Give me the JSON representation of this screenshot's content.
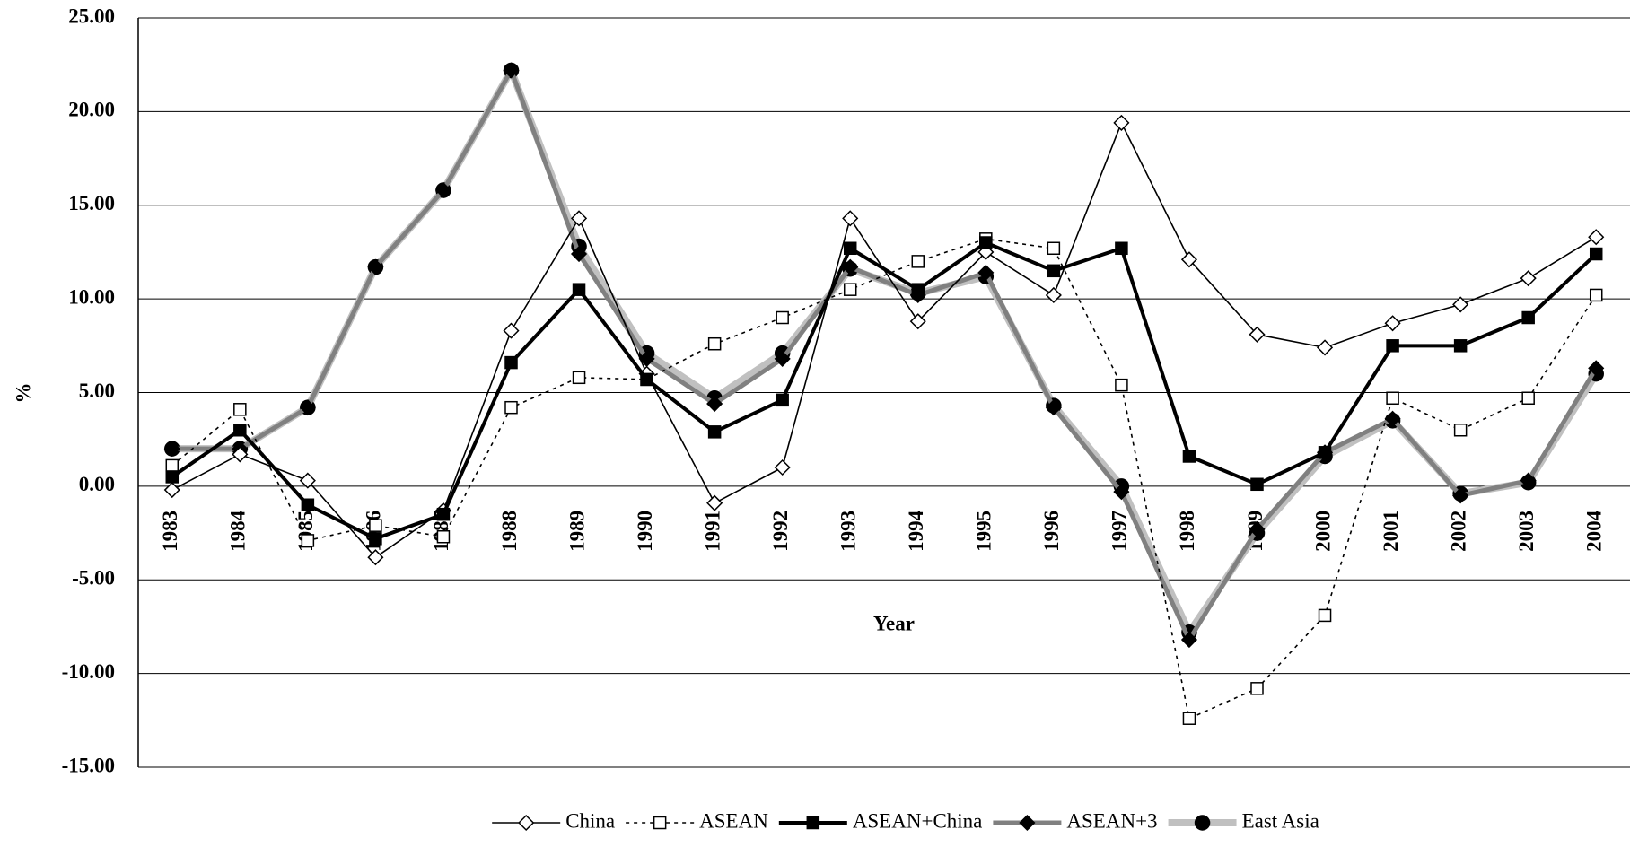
{
  "chart_data": {
    "type": "line",
    "x_label": "Year",
    "y_label": "%",
    "categories": [
      "1983",
      "1984",
      "1985",
      "1986",
      "1987",
      "1988",
      "1989",
      "1990",
      "1991",
      "1992",
      "1993",
      "1994",
      "1995",
      "1996",
      "1997",
      "1998",
      "1999",
      "2000",
      "2001",
      "2002",
      "2003",
      "2004"
    ],
    "series": [
      {
        "name": "China",
        "color": "#000000",
        "values": [
          -0.2,
          1.7,
          0.3,
          -3.8,
          -1.3,
          8.3,
          14.3,
          6.0,
          -0.9,
          1.0,
          14.3,
          8.8,
          12.5,
          10.2,
          19.4,
          12.1,
          8.1,
          7.4,
          8.7,
          9.7,
          11.1,
          13.3
        ]
      },
      {
        "name": "ASEAN",
        "color": "#000000",
        "values": [
          1.1,
          4.1,
          -2.9,
          -2.1,
          -2.7,
          4.2,
          5.8,
          5.7,
          7.6,
          9.0,
          10.5,
          12.0,
          13.2,
          12.7,
          5.4,
          -12.4,
          -10.8,
          -6.9,
          4.7,
          3.0,
          4.7,
          10.2
        ]
      },
      {
        "name": "ASEAN+China",
        "color": "#000000",
        "values": [
          0.5,
          3.0,
          -1.0,
          -2.8,
          -1.5,
          6.6,
          10.5,
          5.7,
          2.9,
          4.6,
          12.7,
          10.5,
          13.0,
          11.5,
          12.7,
          1.6,
          0.1,
          1.8,
          7.5,
          7.5,
          9.0,
          12.4
        ]
      },
      {
        "name": "ASEAN+3",
        "color": "#808080",
        "values": [
          2.0,
          2.0,
          4.2,
          11.7,
          15.8,
          22.2,
          12.4,
          6.8,
          4.4,
          6.8,
          11.7,
          10.2,
          11.4,
          4.2,
          -0.3,
          -8.2,
          -2.3,
          1.8,
          3.6,
          -0.5,
          0.3,
          6.3
        ]
      },
      {
        "name": "East Asia",
        "color": "#c0c0c0",
        "values": [
          2.0,
          2.0,
          4.2,
          11.7,
          15.8,
          22.2,
          12.8,
          7.1,
          4.7,
          7.1,
          11.6,
          10.3,
          11.2,
          4.3,
          0.0,
          -7.8,
          -2.5,
          1.6,
          3.5,
          -0.4,
          0.2,
          6.0
        ]
      }
    ],
    "ylim": [
      -15,
      25
    ],
    "yticks": [
      {
        "value": -15,
        "label": "-15.00"
      },
      {
        "value": -10,
        "label": "-10.00"
      },
      {
        "value": -5,
        "label": "-5.00"
      },
      {
        "value": 0,
        "label": "0.00"
      },
      {
        "value": 5,
        "label": "5.00"
      },
      {
        "value": 10,
        "label": "10.00"
      },
      {
        "value": 15,
        "label": "15.00"
      },
      {
        "value": 20,
        "label": "20.00"
      },
      {
        "value": 25,
        "label": "25.00"
      }
    ],
    "grid": true
  }
}
